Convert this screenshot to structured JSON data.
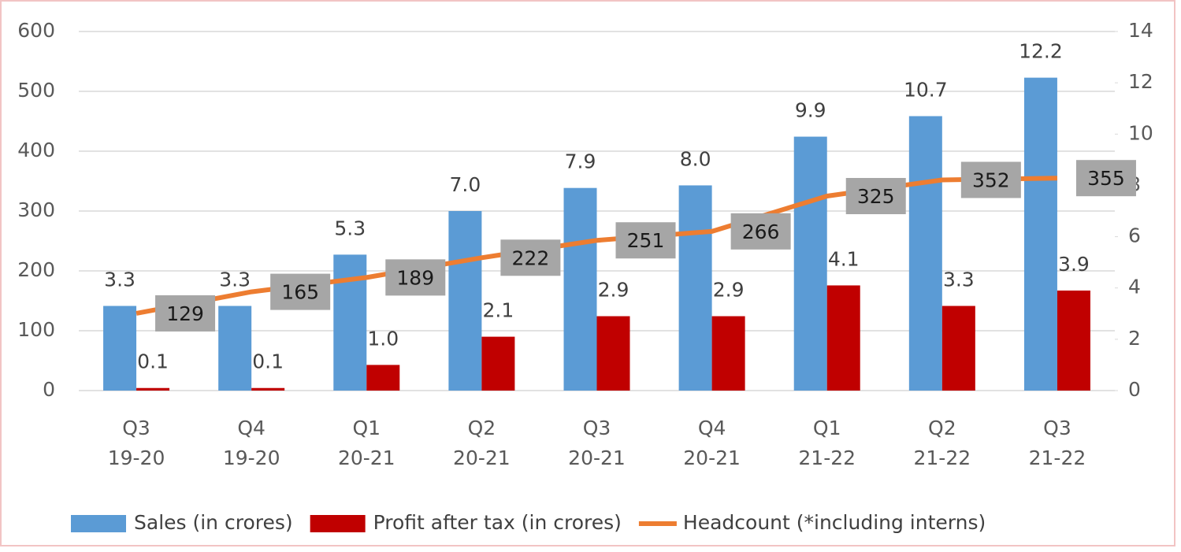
{
  "chart_data": {
    "type": "bar",
    "categories": [
      "Q3 19-20",
      "Q4 19-20",
      "Q1 20-21",
      "Q2 20-21",
      "Q3 20-21",
      "Q4 20-21",
      "Q1 21-22",
      "Q2 21-22",
      "Q3 21-22"
    ],
    "series": [
      {
        "name": "Sales (in crores)",
        "color": "#5b9bd5",
        "axis": "y2",
        "type": "bar",
        "values": [
          3.3,
          3.3,
          5.3,
          7.0,
          7.9,
          8.0,
          9.9,
          10.7,
          12.2
        ],
        "value_labels": [
          "3.3",
          "3.3",
          "5.3",
          "7.0",
          "7.9",
          "8.0",
          "9.9",
          "10.7",
          "12.2"
        ]
      },
      {
        "name": "Profit after tax (in crores)",
        "color": "#c00000",
        "axis": "y2",
        "type": "bar",
        "values": [
          0.1,
          0.1,
          1.0,
          2.1,
          2.9,
          2.9,
          4.1,
          3.3,
          3.9
        ],
        "value_labels": [
          "0.1",
          "0.1",
          "1.0",
          "2.1",
          "2.9",
          "2.9",
          "4.1",
          "3.3",
          "3.9"
        ]
      },
      {
        "name": "Headcount (*including interns)",
        "color": "#ed7d31",
        "axis": "y",
        "type": "line",
        "values": [
          129,
          165,
          189,
          222,
          251,
          266,
          325,
          352,
          355
        ]
      }
    ],
    "ylim": [
      0,
      600
    ],
    "yticks": [
      0,
      100,
      200,
      300,
      400,
      500,
      600
    ],
    "y2lim": [
      0,
      14
    ],
    "y2ticks": [
      0,
      2,
      4,
      6,
      8,
      10,
      12,
      14
    ],
    "grid": true,
    "legend": "bottom"
  }
}
